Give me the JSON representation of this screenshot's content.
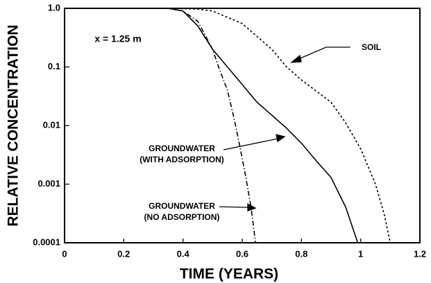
{
  "chart_data": {
    "type": "line",
    "xlabel": "TIME (YEARS)",
    "ylabel": "RELATIVE CONCENTRATION",
    "log_y": true,
    "xlim": [
      0,
      1.2
    ],
    "xticks": [
      0,
      0.2,
      0.4,
      0.6,
      0.8,
      1,
      1.2
    ],
    "ylim": [
      0.0001,
      1
    ],
    "yticks": [
      {
        "value": 1,
        "label": "1.0"
      },
      0.1,
      0.01,
      0.001,
      0.0001
    ],
    "annotations": [
      {
        "lines": [
          "x = 1.25 m"
        ]
      },
      {
        "lines": [
          "SOIL"
        ]
      },
      {
        "lines": [
          "GROUNDWATER",
          "(WITH ADSORPTION)"
        ]
      },
      {
        "lines": [
          "GROUNDWATER",
          "(NO ADSORPTION)"
        ]
      }
    ],
    "series": [
      {
        "color": "#000000",
        "dash": "dash-dot",
        "x": [
          0.35,
          0.4,
          0.45,
          0.5,
          0.52,
          0.55,
          0.57,
          0.59,
          0.61,
          0.63,
          0.645
        ],
        "values": [
          1,
          0.9,
          0.6,
          0.2,
          0.1,
          0.04,
          0.015,
          0.005,
          0.0015,
          0.0004,
          0.0001
        ]
      },
      {
        "color": "#000000",
        "dash": "solid",
        "x": [
          0.35,
          0.4,
          0.45,
          0.5,
          0.55,
          0.6,
          0.65,
          0.7,
          0.75,
          0.8,
          0.85,
          0.9,
          0.95,
          0.99
        ],
        "values": [
          1,
          0.9,
          0.5,
          0.2,
          0.1,
          0.05,
          0.025,
          0.015,
          0.009,
          0.005,
          0.0025,
          0.0013,
          0.0004,
          0.0001
        ]
      },
      {
        "color": "#000000",
        "dash": "dashed",
        "x": [
          0.35,
          0.45,
          0.5,
          0.6,
          0.7,
          0.75,
          0.8,
          0.9,
          0.95,
          1.0,
          1.05,
          1.08,
          1.1
        ],
        "values": [
          1,
          0.97,
          0.9,
          0.55,
          0.2,
          0.1,
          0.06,
          0.025,
          0.011,
          0.004,
          0.001,
          0.0003,
          0.0001
        ]
      }
    ]
  }
}
